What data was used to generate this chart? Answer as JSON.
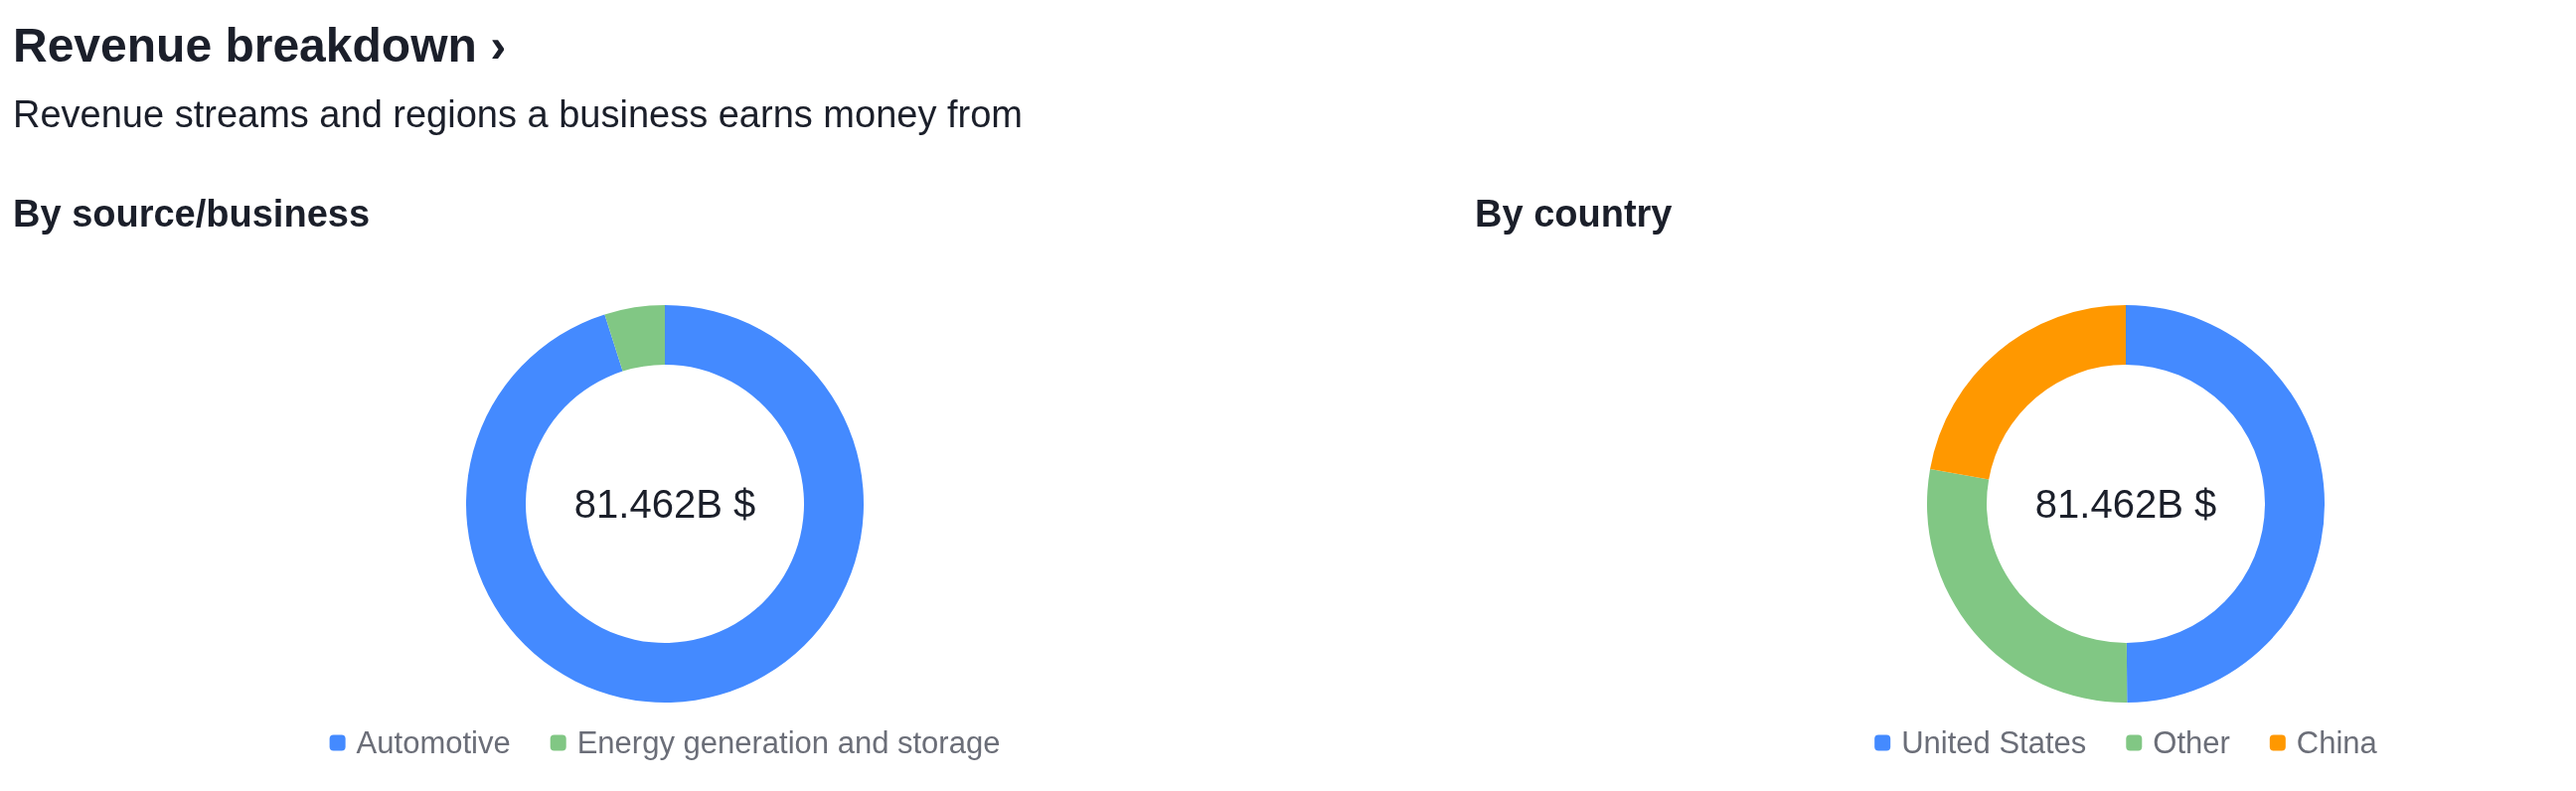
{
  "chart_data": [
    {
      "type": "other",
      "title": "Revenue breakdown ›",
      "subtitle": "Revenue streams and regions a business earns money from"
    },
    {
      "type": "donut",
      "title": "By source/business",
      "categories": [
        "Automotive",
        "Energy generation and storage"
      ],
      "values": [
        95.1,
        4.9
      ],
      "colors": [
        "#448aff",
        "#81c784"
      ],
      "legend": "bottom",
      "annotations": [
        "81.462B $"
      ]
    },
    {
      "type": "donut",
      "title": "By country",
      "categories": [
        "United States",
        "Other",
        "China"
      ],
      "values": [
        49.9,
        27.9,
        22.2
      ],
      "colors": [
        "#448aff",
        "#81c784",
        "#ff9800"
      ],
      "legend": "bottom",
      "annotations": [
        "81.462B $"
      ]
    }
  ]
}
